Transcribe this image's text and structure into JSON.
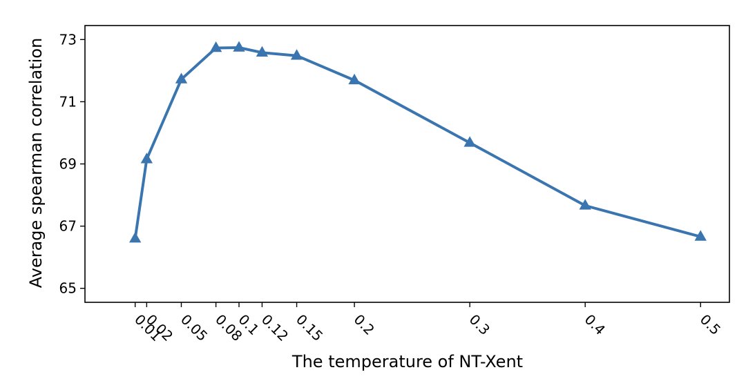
{
  "chart_data": {
    "type": "line",
    "title": "",
    "xlabel": "The temperature of NT-Xent",
    "ylabel": "Average spearman correlation",
    "x": [
      0.01,
      0.02,
      0.05,
      0.08,
      0.1,
      0.12,
      0.15,
      0.2,
      0.3,
      0.4,
      0.5
    ],
    "x_tick_labels": [
      "0.01",
      "0.02",
      "0.05",
      "0.08",
      "0.1",
      "0.12",
      "0.15",
      "0.2",
      "0.3",
      "0.4",
      "0.5"
    ],
    "y_ticks": [
      65,
      67,
      69,
      71,
      73
    ],
    "y_tick_labels": [
      "65",
      "67",
      "69",
      "71",
      "73"
    ],
    "xlim": [
      -0.0335,
      0.525
    ],
    "ylim": [
      64.55,
      73.45
    ],
    "series": [
      {
        "values": [
          66.6,
          69.15,
          71.72,
          72.73,
          72.74,
          72.58,
          72.48,
          71.69,
          69.68,
          67.66,
          66.66
        ],
        "color": "#3a75b0",
        "marker": "triangle-up"
      }
    ],
    "grid": false,
    "legend": false
  }
}
